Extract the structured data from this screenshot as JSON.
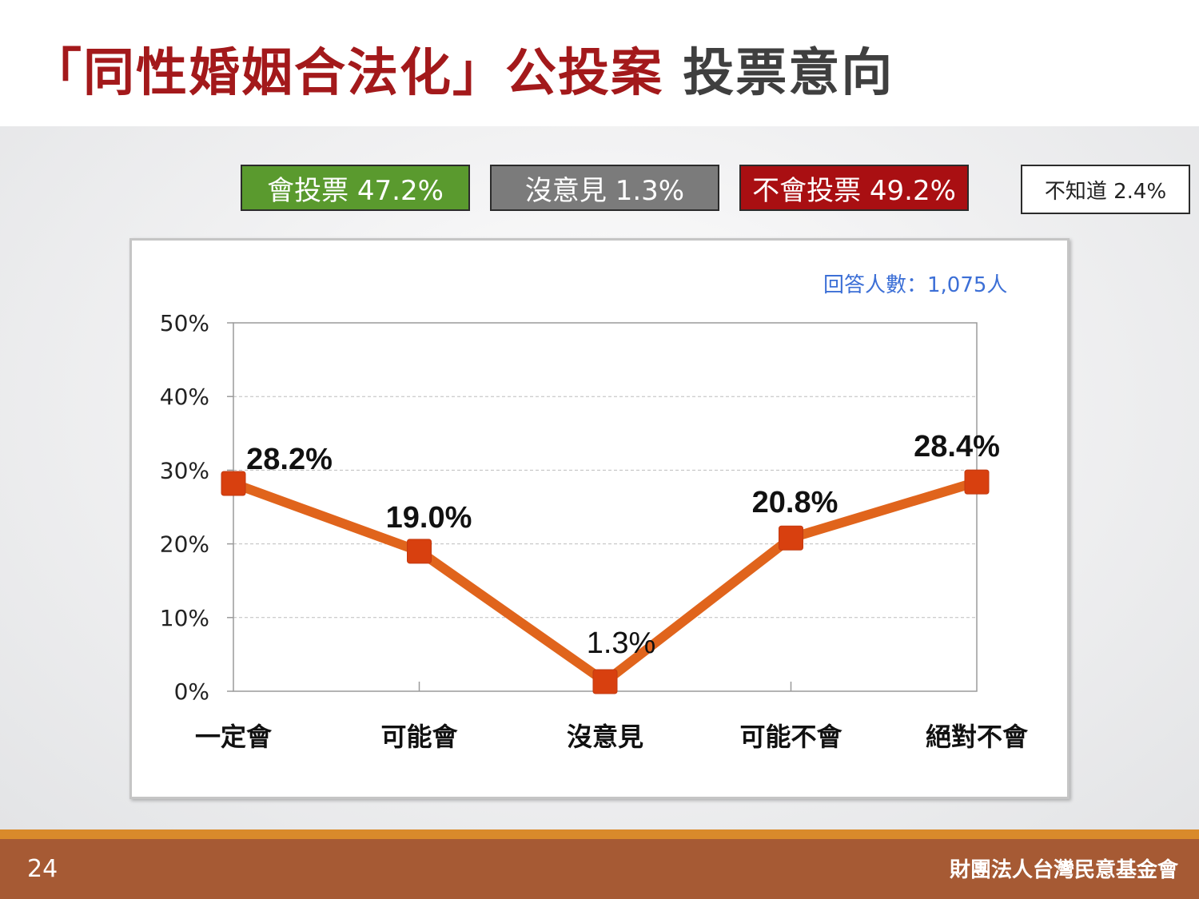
{
  "slide": {
    "title_red": "「同性婚姻合法化」公投案",
    "title_gray": "投票意向",
    "page_number": "24",
    "organization": "財團法人台灣民意基金會"
  },
  "summary": {
    "will_vote": "會投票 47.2%",
    "no_opinion": "沒意見 1.3%",
    "will_not_vote": "不會投票 49.2%",
    "dont_know": "不知道 2.4%"
  },
  "respondents": "回答人數：1,075人",
  "colors": {
    "title_red": "#a3191b",
    "yes_green": "#5a9a2e",
    "neutral_gray": "#7b7b7b",
    "no_red": "#a90f12",
    "line_orange": "#e0641c",
    "marker": "#d8400f",
    "footer": "#a65a34"
  },
  "chart_data": {
    "type": "line",
    "categories": [
      "一定會",
      "可能會",
      "沒意見",
      "可能不會",
      "絕對不會"
    ],
    "series": [
      {
        "values": [
          28.2,
          19.0,
          1.3,
          20.8,
          28.4
        ]
      }
    ],
    "data_labels": [
      "28.2%",
      "19.0%",
      "1.3%",
      "20.8%",
      "28.4%"
    ],
    "y_ticks": [
      "0%",
      "10%",
      "20%",
      "30%",
      "40%",
      "50%"
    ],
    "ylim": [
      0,
      50
    ],
    "grid": true
  }
}
